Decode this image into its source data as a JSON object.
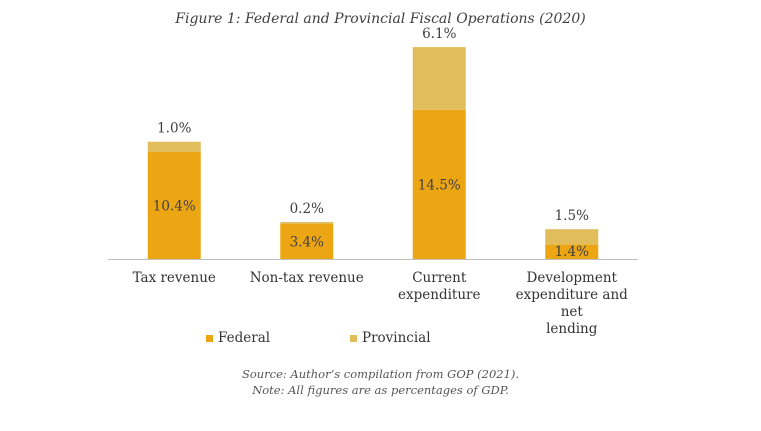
{
  "title": "Figure 1: Federal and Provincial Fiscal Operations (2020)",
  "source": "Source: Author’s compilation from GOP (2021).",
  "note": "Note: All figures are as percentages of GDP.",
  "colors": {
    "federal": "#eda613",
    "provincial": "#e2bd5c",
    "axis": "#bfbfbf"
  },
  "chart_data": {
    "type": "bar",
    "stacked": true,
    "categories": [
      "Tax revenue",
      "Non-tax revenue",
      "Current expenditure",
      "Development expenditure and net lending"
    ],
    "category_lines": [
      [
        "Tax revenue"
      ],
      [
        "Non-tax revenue"
      ],
      [
        "Current expenditure"
      ],
      [
        "Development",
        "expenditure and net",
        "lending"
      ]
    ],
    "series": [
      {
        "name": "Federal",
        "values": [
          10.4,
          3.4,
          14.5,
          1.4
        ],
        "labels": [
          "10.4%",
          "3.4%",
          "14.5%",
          "1.4%"
        ]
      },
      {
        "name": "Provincial",
        "values": [
          1.0,
          0.2,
          6.1,
          1.5
        ],
        "labels": [
          "1.0%",
          "0.2%",
          "6.1%",
          "1.5%"
        ]
      }
    ],
    "ylim": [
      0,
      21
    ],
    "legend_position": "bottom-left",
    "grid": false
  }
}
